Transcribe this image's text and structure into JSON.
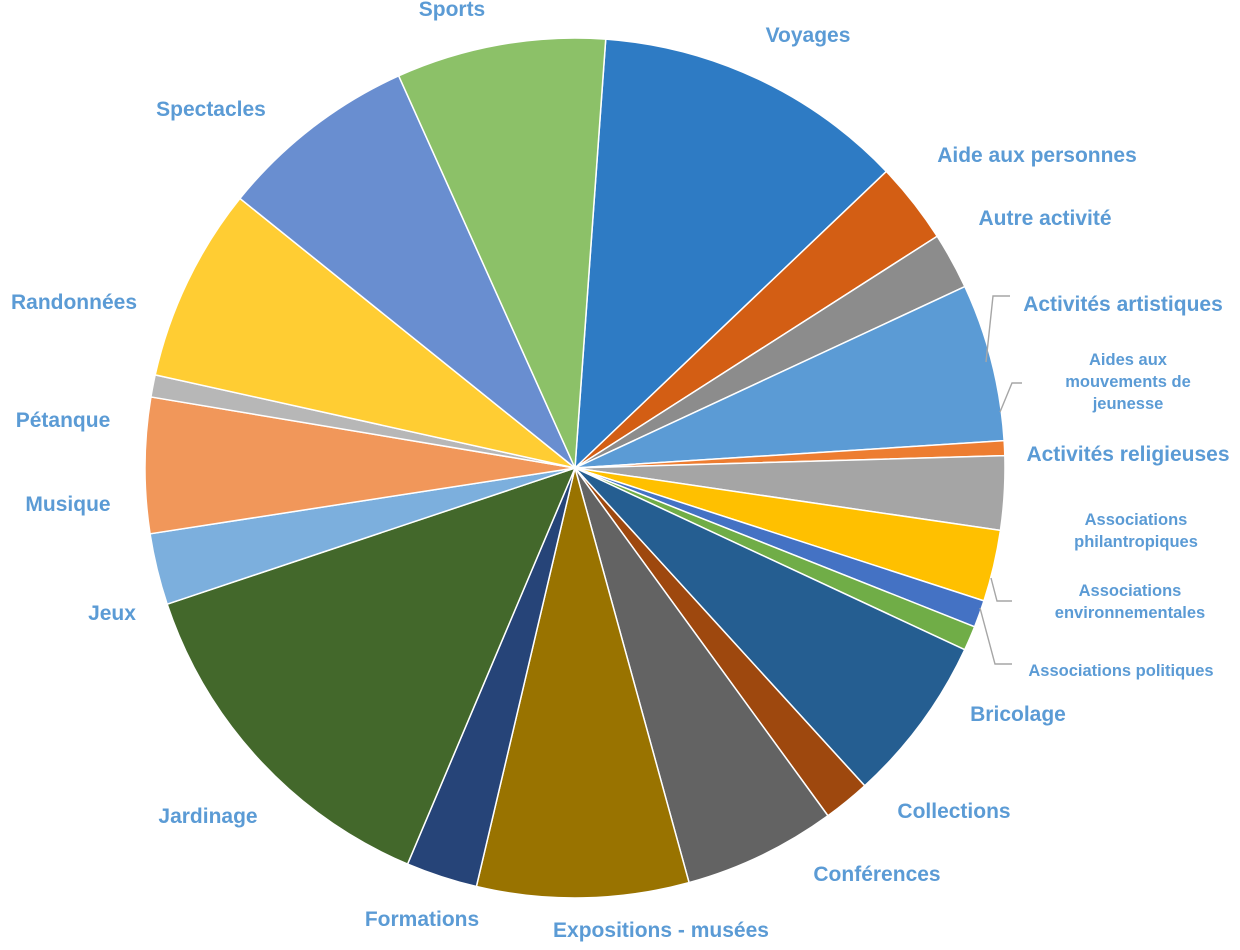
{
  "chart_data": {
    "type": "pie",
    "title": "",
    "start_angle_deg": 4.1,
    "direction": "clockwise",
    "label_color": "#5b9bd5",
    "slices": [
      {
        "label": "Voyages",
        "value": 12.7,
        "color": "#2e7bc4"
      },
      {
        "label": "Aide aux personnes",
        "value": 3.3,
        "color": "#d35e14"
      },
      {
        "label": "Autre activité",
        "value": 2.3,
        "color": "#8c8c8c"
      },
      {
        "label": "Activités artistiques",
        "value": 6.4,
        "color": "#5b9bd5"
      },
      {
        "label": "Aides aux mouvements de jeunesse",
        "value": 0.6,
        "color": "#ed7d31"
      },
      {
        "label": "Activités religieuses",
        "value": 3.0,
        "color": "#a5a5a5"
      },
      {
        "label": "Associations philantropiques",
        "value": 2.9,
        "color": "#ffc000"
      },
      {
        "label": "Associations environnementales",
        "value": 1.1,
        "color": "#4472c4"
      },
      {
        "label": "Associations politiques",
        "value": 1.0,
        "color": "#70ad47"
      },
      {
        "label": "Bricolage",
        "value": 6.8,
        "color": "#255e91"
      },
      {
        "label": "Collections",
        "value": 1.9,
        "color": "#9e480e"
      },
      {
        "label": "Conférences",
        "value": 6.2,
        "color": "#636363"
      },
      {
        "label": "Expositions - musées",
        "value": 8.6,
        "color": "#997300"
      },
      {
        "label": "Formations",
        "value": 2.9,
        "color": "#264478"
      },
      {
        "label": "Jardinage",
        "value": 14.6,
        "color": "#43682b"
      },
      {
        "label": "Jeux",
        "value": 2.9,
        "color": "#7cafdd"
      },
      {
        "label": "Musique",
        "value": 5.5,
        "color": "#f1975a"
      },
      {
        "label": "Pétanque",
        "value": 0.9,
        "color": "#b7b7b7"
      },
      {
        "label": "Randonnées",
        "value": 7.9,
        "color": "#ffcd33"
      },
      {
        "label": "Spectacles",
        "value": 8.1,
        "color": "#698ed0"
      },
      {
        "label": "Sports",
        "value": 8.5,
        "color": "#8cc168"
      }
    ]
  }
}
